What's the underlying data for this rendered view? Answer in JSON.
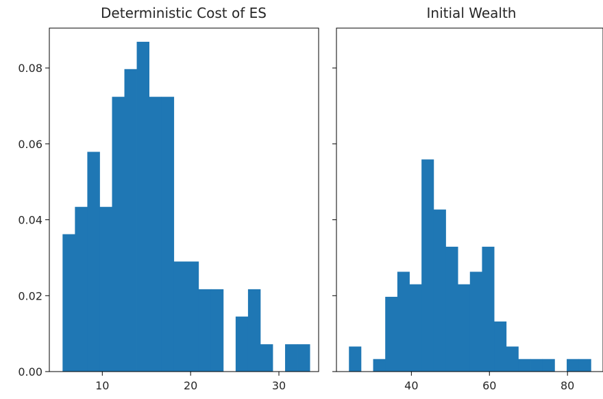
{
  "chart_data": [
    {
      "type": "bar",
      "title": "Deterministic Cost of ES",
      "xlabel": "",
      "ylabel": "",
      "xlim": [
        4,
        34.5
      ],
      "ylim": [
        0,
        0.0905
      ],
      "xticks": [
        10,
        20,
        30
      ],
      "yticks": [
        0.0,
        0.02,
        0.04,
        0.06,
        0.08
      ],
      "ytick_labels": [
        "0.00",
        "0.02",
        "0.04",
        "0.06",
        "0.08"
      ],
      "bin_edges": [
        5.5,
        6.9,
        8.3,
        9.7,
        11.1,
        12.5,
        13.9,
        15.3,
        16.7,
        18.1,
        19.5,
        20.9,
        22.3,
        23.7,
        25.1,
        26.5,
        27.9,
        29.3,
        30.7,
        32.1,
        33.5
      ],
      "values": [
        0.0362,
        0.0434,
        0.0579,
        0.0434,
        0.0724,
        0.0797,
        0.0869,
        0.0724,
        0.0724,
        0.029,
        0.029,
        0.0217,
        0.0217,
        0.0,
        0.0145,
        0.0217,
        0.0072,
        0.0,
        0.0072,
        0.0072
      ],
      "color": "#1f77b4",
      "grid": false
    },
    {
      "type": "bar",
      "title": "Initial Wealth",
      "xlabel": "",
      "ylabel": "",
      "xlim": [
        20.8,
        89.1
      ],
      "ylim": [
        0,
        0.0905
      ],
      "xticks": [
        40,
        60,
        80
      ],
      "yticks": [
        0.0,
        0.02,
        0.04,
        0.06,
        0.08
      ],
      "ytick_labels": [],
      "bin_edges": [
        24,
        27.1,
        30.2,
        33.3,
        36.4,
        39.5,
        42.6,
        45.7,
        48.8,
        51.9,
        55,
        58.1,
        61.2,
        64.3,
        67.4,
        70.5,
        73.6,
        76.7,
        79.8,
        82.9,
        86
      ],
      "values": [
        0.0066,
        0.0,
        0.0033,
        0.0197,
        0.0263,
        0.023,
        0.0559,
        0.0427,
        0.0329,
        0.023,
        0.0263,
        0.0329,
        0.0132,
        0.0066,
        0.0033,
        0.0033,
        0.0033,
        0.0,
        0.0033,
        0.0033
      ],
      "color": "#1f77b4",
      "grid": false
    }
  ]
}
